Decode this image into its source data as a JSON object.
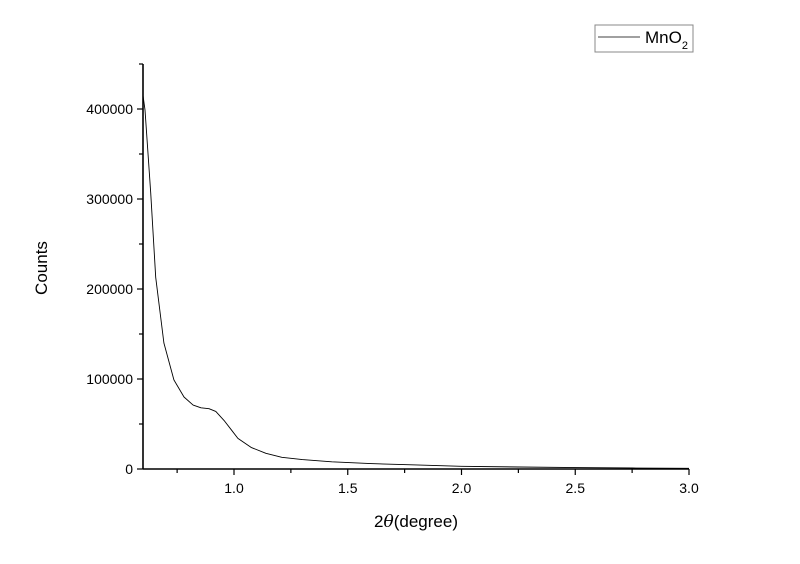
{
  "chart_data": {
    "type": "line",
    "title": "",
    "xlabel": "2θ(degree)",
    "xlabel_parts": {
      "prefix": "2",
      "symbol": "θ",
      "suffix": "(degree)"
    },
    "ylabel": "Counts",
    "xlim": [
      0.6,
      3.0
    ],
    "ylim": [
      0,
      450000
    ],
    "x_ticks": [
      1.0,
      1.5,
      2.0,
      2.5,
      3.0
    ],
    "x_tick_labels": [
      "1.0",
      "1.5",
      "2.0",
      "2.5",
      "3.0"
    ],
    "y_ticks": [
      0,
      100000,
      200000,
      300000,
      400000
    ],
    "y_tick_labels": [
      "0",
      "100000",
      "200000",
      "300000",
      "400000"
    ],
    "grid": false,
    "legend": {
      "position": "top-right",
      "entries": [
        {
          "base": "MnO",
          "subscript": "2"
        }
      ]
    },
    "series": [
      {
        "name": "MnO2",
        "color": "#000000",
        "x": [
          0.6,
          0.609,
          0.634,
          0.656,
          0.692,
          0.736,
          0.78,
          0.82,
          0.855,
          0.89,
          0.92,
          0.956,
          0.99,
          1.017,
          1.075,
          1.14,
          1.21,
          1.3,
          1.43,
          1.6,
          1.8,
          2.0,
          2.25,
          2.5,
          2.75,
          3.0
        ],
        "y": [
          415000,
          399000,
          307000,
          213000,
          140000,
          99000,
          80000,
          71000,
          68000,
          67000,
          64000,
          54000,
          43000,
          34000,
          24000,
          17500,
          13000,
          10500,
          8000,
          6000,
          4500,
          3000,
          2200,
          1500,
          1100,
          800
        ]
      }
    ]
  }
}
